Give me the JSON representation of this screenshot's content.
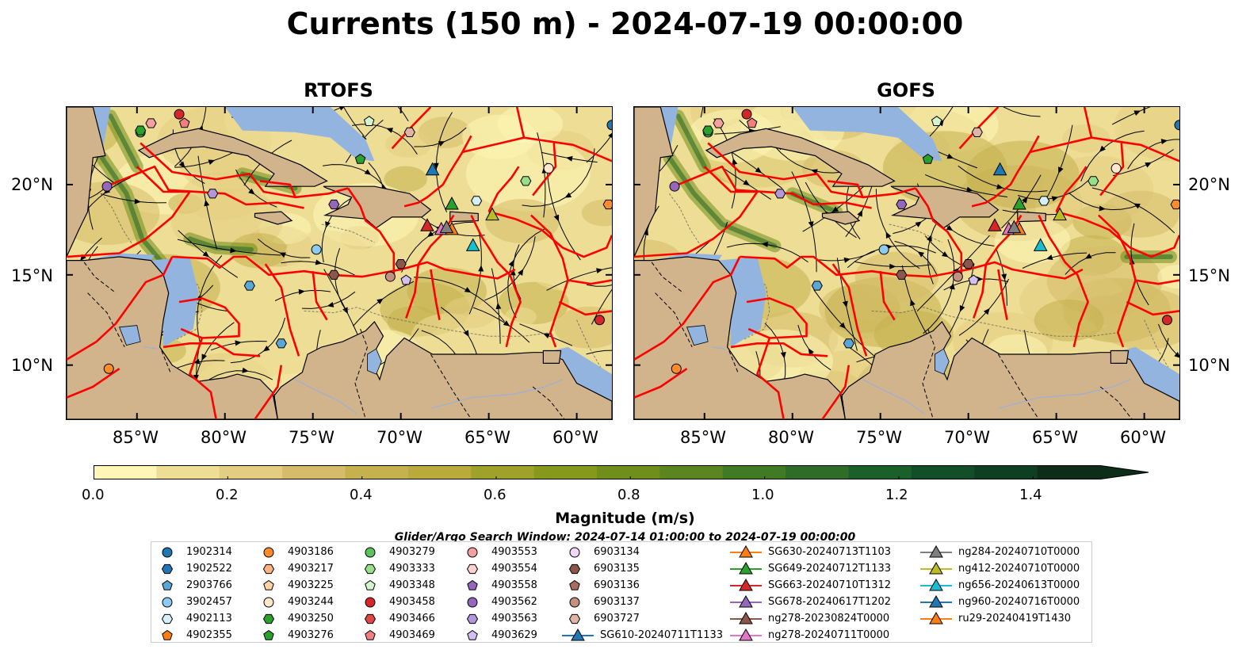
{
  "figure": {
    "title": "Currents (150 m) - 2024-07-19 00:00:00",
    "panels": [
      {
        "title": "RTOFS"
      },
      {
        "title": "GOFS"
      }
    ],
    "lat_ticks": [
      "10°N",
      "15°N",
      "20°N"
    ],
    "lon_ticks": [
      "85°W",
      "80°W",
      "75°W",
      "70°W",
      "65°W",
      "60°W"
    ],
    "map_extent": {
      "lon_min": -89,
      "lon_max": -58,
      "lat_min": 7,
      "lat_max": 24.3
    },
    "colorbar": {
      "label": "Magnitude (m/s)",
      "ticks": [
        "0.0",
        "0.2",
        "0.4",
        "0.6",
        "0.8",
        "1.0",
        "1.2",
        "1.4"
      ],
      "min": 0.0,
      "max": 1.5,
      "colors": [
        "#fdf6b7",
        "#eedd95",
        "#e3cd82",
        "#d6bc6a",
        "#c5b14e",
        "#b8aa3b",
        "#9ea22a",
        "#86991b",
        "#6f8e1b",
        "#5a8520",
        "#417a24",
        "#2d6d28",
        "#1b5f2a",
        "#124f28",
        "#0f3f22",
        "#0d2d18"
      ]
    },
    "legend": {
      "title": "Glider/Argo Search Window: 2024-07-14 01:00:00 to 2024-07-19 00:00:00",
      "entries": [
        {
          "label": "1902314",
          "marker": "circle",
          "color": "#1f77b4"
        },
        {
          "label": "1902522",
          "marker": "hexagon",
          "color": "#1f77b4"
        },
        {
          "label": "2903766",
          "marker": "pentagon",
          "color": "#5aa7d6"
        },
        {
          "label": "3902457",
          "marker": "circle",
          "color": "#8ecbf2"
        },
        {
          "label": "4902113",
          "marker": "hexagon",
          "color": "#d6f0fb"
        },
        {
          "label": "4902355",
          "marker": "pentagon",
          "color": "#ff7f0e"
        },
        {
          "label": "4903186",
          "marker": "circle",
          "color": "#ff8c2a"
        },
        {
          "label": "4903217",
          "marker": "hexagon",
          "color": "#ffb380"
        },
        {
          "label": "4903225",
          "marker": "pentagon",
          "color": "#ffd1a8"
        },
        {
          "label": "4903244",
          "marker": "circle",
          "color": "#ffe6cc"
        },
        {
          "label": "4903250",
          "marker": "hexagon",
          "color": "#2ca02c"
        },
        {
          "label": "4903276",
          "marker": "pentagon",
          "color": "#2ca02c"
        },
        {
          "label": "4903279",
          "marker": "circle",
          "color": "#5cc35c"
        },
        {
          "label": "4903333",
          "marker": "hexagon",
          "color": "#98df8a"
        },
        {
          "label": "4903348",
          "marker": "pentagon",
          "color": "#d4f5cc"
        },
        {
          "label": "4903458",
          "marker": "circle",
          "color": "#d62728"
        },
        {
          "label": "4903466",
          "marker": "hexagon",
          "color": "#e04646"
        },
        {
          "label": "4903469",
          "marker": "pentagon",
          "color": "#f08080"
        },
        {
          "label": "4903553",
          "marker": "circle",
          "color": "#f4a0a0"
        },
        {
          "label": "4903554",
          "marker": "hexagon",
          "color": "#fcd0d0"
        },
        {
          "label": "4903558",
          "marker": "pentagon",
          "color": "#9467bd"
        },
        {
          "label": "4903562",
          "marker": "circle",
          "color": "#9467bd"
        },
        {
          "label": "4903563",
          "marker": "hexagon",
          "color": "#b396dc"
        },
        {
          "label": "4903629",
          "marker": "pentagon",
          "color": "#d3bff0"
        },
        {
          "label": "6903134",
          "marker": "circle",
          "color": "#f0d6fa"
        },
        {
          "label": "6903135",
          "marker": "hexagon",
          "color": "#8c564b"
        },
        {
          "label": "6903136",
          "marker": "pentagon",
          "color": "#a66d5e"
        },
        {
          "label": "6903137",
          "marker": "circle",
          "color": "#c49080"
        },
        {
          "label": "6903727",
          "marker": "hexagon",
          "color": "#e0b5a5"
        },
        {
          "label": "SG610-20240711T1133",
          "marker": "triangle-line",
          "color": "#1f77b4"
        },
        {
          "label": "SG630-20240713T1103",
          "marker": "triangle-line",
          "color": "#ff7f0e"
        },
        {
          "label": "SG649-20240712T1133",
          "marker": "triangle-line",
          "color": "#2ca02c"
        },
        {
          "label": "SG663-20240710T1312",
          "marker": "triangle-line",
          "color": "#d62728"
        },
        {
          "label": "SG678-20240617T1202",
          "marker": "triangle-line",
          "color": "#9467bd"
        },
        {
          "label": "ng278-20230824T0000",
          "marker": "triangle-line",
          "color": "#8c564b"
        },
        {
          "label": "ng278-20240711T0000",
          "marker": "triangle-line",
          "color": "#e377c2"
        },
        {
          "label": "ng284-20240710T0000",
          "marker": "triangle-line",
          "color": "#7f7f7f"
        },
        {
          "label": "ng412-20240710T0000",
          "marker": "triangle-line",
          "color": "#bcbd22"
        },
        {
          "label": "ng656-20240613T0000",
          "marker": "triangle-line",
          "color": "#17becf"
        },
        {
          "label": "ng960-20240716T0000",
          "marker": "triangle-line",
          "color": "#1f77b4"
        },
        {
          "label": "ru29-20240419T1430",
          "marker": "triangle-line",
          "color": "#ff7f0e"
        }
      ]
    },
    "colors": {
      "land": "#d2b48c",
      "shallow_water": "#94b4e0",
      "eez_line": "#ff0000",
      "streamline": "#000000"
    }
  }
}
